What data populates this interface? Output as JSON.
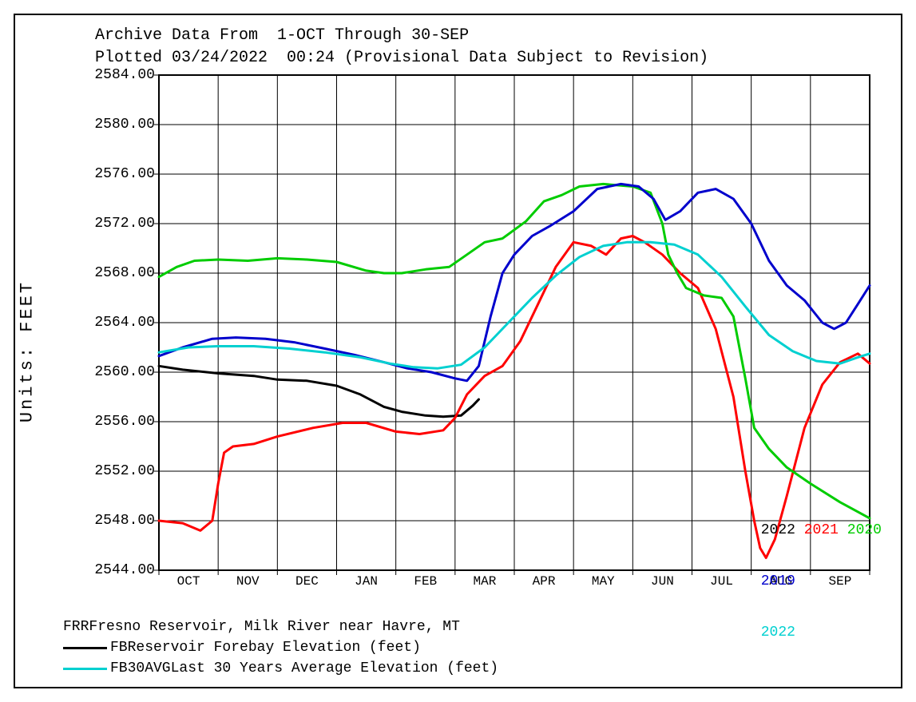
{
  "title_line1": "Archive Data From  1-OCT Through 30-SEP",
  "title_line2": "Plotted 03/24/2022  00:24 (Provisional Data Subject to Revision)",
  "y_axis_label": "Units: FEET",
  "chart": {
    "type": "line",
    "background_color": "#ffffff",
    "border_color": "#000000",
    "grid_color": "#000000",
    "ylim": [
      2544.0,
      2584.0
    ],
    "ytick_step": 4.0,
    "y_ticks": [
      "2544.00",
      "2548.00",
      "2552.00",
      "2556.00",
      "2560.00",
      "2564.00",
      "2568.00",
      "2572.00",
      "2576.00",
      "2580.00",
      "2584.00"
    ],
    "x_labels": [
      "OCT",
      "NOV",
      "DEC",
      "JAN",
      "FEB",
      "MAR",
      "APR",
      "MAY",
      "JUN",
      "JUL",
      "AUG",
      "SEP"
    ],
    "x_divisions": 12,
    "line_width": 3,
    "series": [
      {
        "id": "fb_2022",
        "label": "FB 2022",
        "color": "#000000",
        "points": [
          [
            0.0,
            2560.5
          ],
          [
            0.4,
            2560.2
          ],
          [
            1.0,
            2559.9
          ],
          [
            1.6,
            2559.7
          ],
          [
            2.0,
            2559.4
          ],
          [
            2.5,
            2559.3
          ],
          [
            3.0,
            2558.9
          ],
          [
            3.4,
            2558.2
          ],
          [
            3.8,
            2557.2
          ],
          [
            4.1,
            2556.8
          ],
          [
            4.5,
            2556.5
          ],
          [
            4.8,
            2556.4
          ],
          [
            5.1,
            2556.5
          ],
          [
            5.3,
            2557.3
          ],
          [
            5.4,
            2557.8
          ]
        ]
      },
      {
        "id": "fb_2021",
        "label": "2021",
        "color": "#ff0000",
        "points": [
          [
            0.0,
            2548.0
          ],
          [
            0.4,
            2547.8
          ],
          [
            0.7,
            2547.2
          ],
          [
            0.9,
            2548.0
          ],
          [
            1.0,
            2551.0
          ],
          [
            1.1,
            2553.5
          ],
          [
            1.25,
            2554.0
          ],
          [
            1.6,
            2554.2
          ],
          [
            2.0,
            2554.8
          ],
          [
            2.6,
            2555.5
          ],
          [
            3.1,
            2555.9
          ],
          [
            3.5,
            2555.9
          ],
          [
            4.0,
            2555.2
          ],
          [
            4.4,
            2555.0
          ],
          [
            4.8,
            2555.3
          ],
          [
            5.0,
            2556.3
          ],
          [
            5.2,
            2558.2
          ],
          [
            5.5,
            2559.7
          ],
          [
            5.8,
            2560.5
          ],
          [
            6.1,
            2562.5
          ],
          [
            6.4,
            2565.5
          ],
          [
            6.7,
            2568.5
          ],
          [
            7.0,
            2570.5
          ],
          [
            7.3,
            2570.2
          ],
          [
            7.55,
            2569.5
          ],
          [
            7.8,
            2570.8
          ],
          [
            8.0,
            2571.0
          ],
          [
            8.2,
            2570.5
          ],
          [
            8.5,
            2569.5
          ],
          [
            8.8,
            2568.0
          ],
          [
            9.1,
            2566.8
          ],
          [
            9.4,
            2563.5
          ],
          [
            9.7,
            2558.0
          ],
          [
            9.9,
            2552.0
          ],
          [
            10.05,
            2548.0
          ],
          [
            10.15,
            2545.8
          ],
          [
            10.25,
            2545.0
          ],
          [
            10.4,
            2546.5
          ],
          [
            10.6,
            2550.0
          ],
          [
            10.9,
            2555.5
          ],
          [
            11.2,
            2559.0
          ],
          [
            11.5,
            2560.8
          ],
          [
            11.8,
            2561.5
          ],
          [
            12.0,
            2560.7
          ]
        ]
      },
      {
        "id": "fb_2020",
        "label": "2020",
        "color": "#00cc00",
        "points": [
          [
            0.0,
            2567.7
          ],
          [
            0.3,
            2568.5
          ],
          [
            0.6,
            2569.0
          ],
          [
            1.0,
            2569.1
          ],
          [
            1.5,
            2569.0
          ],
          [
            2.0,
            2569.2
          ],
          [
            2.5,
            2569.1
          ],
          [
            3.0,
            2568.9
          ],
          [
            3.5,
            2568.2
          ],
          [
            3.8,
            2568.0
          ],
          [
            4.1,
            2568.0
          ],
          [
            4.5,
            2568.3
          ],
          [
            4.9,
            2568.5
          ],
          [
            5.2,
            2569.5
          ],
          [
            5.5,
            2570.5
          ],
          [
            5.8,
            2570.8
          ],
          [
            6.2,
            2572.2
          ],
          [
            6.5,
            2573.8
          ],
          [
            6.8,
            2574.3
          ],
          [
            7.1,
            2575.0
          ],
          [
            7.5,
            2575.2
          ],
          [
            8.0,
            2575.0
          ],
          [
            8.3,
            2574.5
          ],
          [
            8.5,
            2572.0
          ],
          [
            8.6,
            2569.5
          ],
          [
            8.75,
            2568.0
          ],
          [
            8.9,
            2566.8
          ],
          [
            9.2,
            2566.2
          ],
          [
            9.5,
            2566.0
          ],
          [
            9.7,
            2564.5
          ],
          [
            9.9,
            2559.5
          ],
          [
            10.05,
            2555.5
          ],
          [
            10.3,
            2553.8
          ],
          [
            10.6,
            2552.3
          ],
          [
            11.0,
            2551.0
          ],
          [
            11.5,
            2549.5
          ],
          [
            12.0,
            2548.2
          ]
        ]
      },
      {
        "id": "fb_2019",
        "label": "2019",
        "color": "#0000cc",
        "points": [
          [
            0.0,
            2561.3
          ],
          [
            0.4,
            2562.0
          ],
          [
            0.9,
            2562.7
          ],
          [
            1.3,
            2562.8
          ],
          [
            1.8,
            2562.7
          ],
          [
            2.3,
            2562.4
          ],
          [
            2.8,
            2561.9
          ],
          [
            3.3,
            2561.4
          ],
          [
            3.8,
            2560.8
          ],
          [
            4.2,
            2560.3
          ],
          [
            4.6,
            2560.0
          ],
          [
            5.0,
            2559.5
          ],
          [
            5.2,
            2559.3
          ],
          [
            5.4,
            2560.5
          ],
          [
            5.6,
            2564.5
          ],
          [
            5.8,
            2568.0
          ],
          [
            6.0,
            2569.5
          ],
          [
            6.3,
            2571.0
          ],
          [
            6.6,
            2571.8
          ],
          [
            7.0,
            2573.0
          ],
          [
            7.4,
            2574.8
          ],
          [
            7.8,
            2575.2
          ],
          [
            8.1,
            2575.0
          ],
          [
            8.35,
            2574.0
          ],
          [
            8.55,
            2572.3
          ],
          [
            8.8,
            2573.0
          ],
          [
            9.1,
            2574.5
          ],
          [
            9.4,
            2574.8
          ],
          [
            9.7,
            2574.0
          ],
          [
            10.0,
            2572.0
          ],
          [
            10.3,
            2569.0
          ],
          [
            10.6,
            2567.0
          ],
          [
            10.9,
            2565.8
          ],
          [
            11.2,
            2564.0
          ],
          [
            11.4,
            2563.5
          ],
          [
            11.6,
            2564.0
          ],
          [
            11.8,
            2565.5
          ],
          [
            12.0,
            2567.0
          ]
        ]
      },
      {
        "id": "fb30avg",
        "label": "FB30AVG 2022",
        "color": "#00d0d0",
        "points": [
          [
            0.0,
            2561.6
          ],
          [
            0.5,
            2562.0
          ],
          [
            1.0,
            2562.1
          ],
          [
            1.6,
            2562.1
          ],
          [
            2.2,
            2561.9
          ],
          [
            2.8,
            2561.6
          ],
          [
            3.4,
            2561.2
          ],
          [
            3.9,
            2560.7
          ],
          [
            4.3,
            2560.4
          ],
          [
            4.7,
            2560.3
          ],
          [
            5.1,
            2560.6
          ],
          [
            5.5,
            2562.0
          ],
          [
            5.9,
            2564.0
          ],
          [
            6.3,
            2566.0
          ],
          [
            6.7,
            2567.8
          ],
          [
            7.1,
            2569.3
          ],
          [
            7.5,
            2570.2
          ],
          [
            7.9,
            2570.5
          ],
          [
            8.3,
            2570.5
          ],
          [
            8.7,
            2570.3
          ],
          [
            9.1,
            2569.5
          ],
          [
            9.5,
            2567.7
          ],
          [
            9.9,
            2565.3
          ],
          [
            10.3,
            2563.0
          ],
          [
            10.7,
            2561.7
          ],
          [
            11.1,
            2560.9
          ],
          [
            11.5,
            2560.7
          ],
          [
            11.8,
            2561.2
          ],
          [
            12.0,
            2561.5
          ]
        ]
      }
    ]
  },
  "footer": {
    "station_code": "FRR",
    "station_name": "Fresno Reservoir, Milk River near Havre, MT",
    "line2_code": "FB",
    "line2_desc": "Reservoir Forebay Elevation (feet)",
    "line3_code": "FB30AVG",
    "line3_desc": "Last 30 Years Average Elevation (feet)",
    "fb_swatch_color": "#000000",
    "avg_swatch_color": "#00d0d0"
  },
  "year_legend": {
    "y2022": {
      "text": "2022",
      "color": "#000000"
    },
    "y2021": {
      "text": "2021",
      "color": "#ff0000"
    },
    "y2020": {
      "text": "2020",
      "color": "#00cc00"
    },
    "y2019": {
      "text": "2019",
      "color": "#0000cc"
    },
    "y_avg": {
      "text": "2022",
      "color": "#00d0d0"
    }
  }
}
